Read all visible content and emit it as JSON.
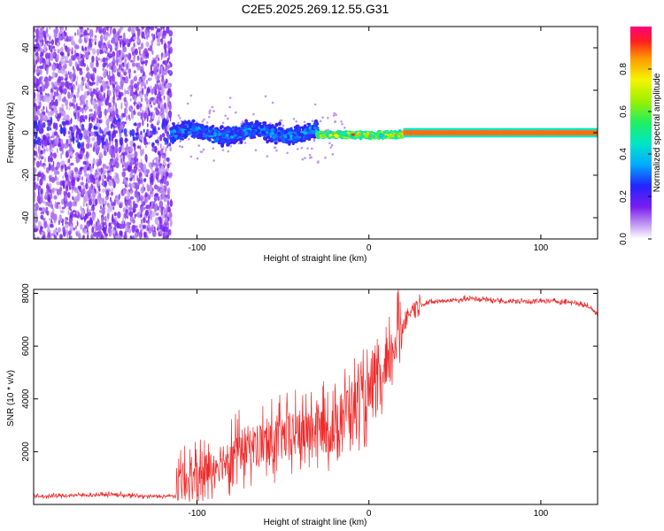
{
  "title": "C2E5.2025.269.12.55.G31",
  "colors": {
    "snr_line": "#ee2a2a",
    "frame": "#000000",
    "background": "#ffffff"
  },
  "chart_data": [
    {
      "type": "heatmap",
      "name": "spectrogram",
      "xlabel": "Height of straight line (km)",
      "ylabel": "Frequency (Hz)",
      "xlim": [
        -195,
        133
      ],
      "ylim": [
        -50,
        50
      ],
      "xticks": [
        -100,
        0,
        100
      ],
      "xtick_labels": [
        "-100",
        "0",
        "100"
      ],
      "yticks": [
        -40,
        -20,
        0,
        20,
        40
      ],
      "ytick_labels": [
        "-40",
        "-20",
        "0",
        "20",
        "40"
      ],
      "colorbar": {
        "label": "Normalized spectral amplitude",
        "range": [
          0,
          1
        ],
        "ticks": [
          0.0,
          0.2,
          0.4,
          0.6,
          0.8
        ],
        "tick_labels": [
          "0.0",
          "0.2",
          "0.4",
          "0.6",
          "0.8"
        ]
      },
      "regions": [
        {
          "x_range": [
            -195,
            -115
          ],
          "description": "noise",
          "freq_spread_hz": 50,
          "amplitude": [
            0.0,
            0.15
          ]
        },
        {
          "x_range": [
            -115,
            -30
          ],
          "center_freq_hz": 0,
          "freq_spread_hz": 6,
          "amplitude": [
            0.2,
            0.4
          ]
        },
        {
          "x_range": [
            -30,
            20
          ],
          "center_freq_hz": -1,
          "freq_spread_hz": 2,
          "amplitude": [
            0.4,
            0.95
          ]
        },
        {
          "x_range": [
            20,
            133
          ],
          "center_freq_hz": 0,
          "freq_spread_hz": 1,
          "amplitude": [
            0.7,
            0.95
          ]
        }
      ]
    },
    {
      "type": "line",
      "name": "snr",
      "xlabel": "Height of straight line (km)",
      "ylabel": "SNR (10 * v/v)",
      "xlim": [
        -195,
        133
      ],
      "ylim": [
        0,
        8150
      ],
      "xticks": [
        -100,
        0,
        100
      ],
      "xtick_labels": [
        "-100",
        "0",
        "100"
      ],
      "yticks": [
        2000,
        4000,
        6000,
        8000
      ],
      "ytick_labels": [
        "2000",
        "4000",
        "6000",
        "8000"
      ],
      "series": [
        {
          "name": "SNR",
          "x": [
            -195,
            -170,
            -150,
            -130,
            -112,
            -108,
            -100,
            -90,
            -80,
            -70,
            -60,
            -50,
            -40,
            -30,
            -20,
            -15,
            -10,
            -5,
            0,
            5,
            10,
            15,
            20,
            25,
            30,
            40,
            60,
            80,
            100,
            110,
            120,
            128,
            133
          ],
          "values": [
            300,
            350,
            380,
            300,
            320,
            1000,
            900,
            1500,
            1900,
            2200,
            2300,
            2500,
            2700,
            2900,
            2800,
            3600,
            3800,
            3900,
            4100,
            4300,
            4800,
            6200,
            6900,
            7400,
            7600,
            7700,
            7800,
            7700,
            7700,
            7700,
            7650,
            7500,
            7200
          ],
          "color": "#ee2a2a"
        }
      ]
    }
  ]
}
